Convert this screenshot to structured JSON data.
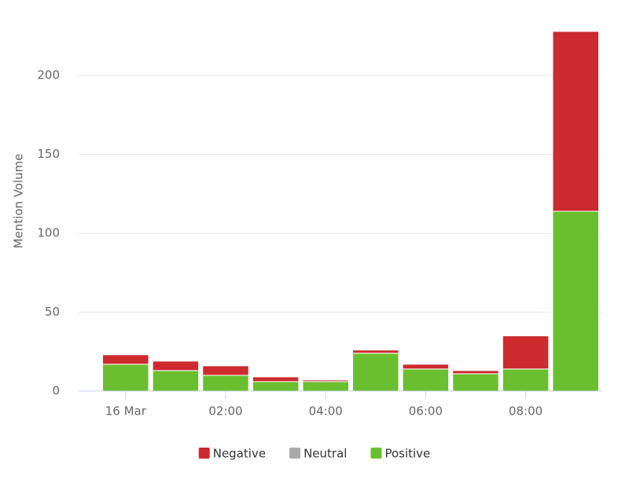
{
  "chart_data": {
    "type": "stacked-bar",
    "y_label": "Mention Volume",
    "categories": [
      "16 Mar",
      null,
      "02:00",
      null,
      "04:00",
      null,
      "06:00",
      null,
      "08:00",
      null
    ],
    "series": [
      {
        "name": "Positive",
        "color": "#6abf30",
        "values": [
          17,
          13,
          10,
          6,
          6,
          24,
          14,
          11,
          14,
          114
        ]
      },
      {
        "name": "Neutral",
        "color": "#aaaaaa",
        "values": [
          0,
          0,
          0,
          0,
          0,
          0,
          0,
          0,
          0,
          0
        ]
      },
      {
        "name": "Negative",
        "color": "#cc2a2e",
        "values": [
          6,
          6,
          6,
          3,
          1,
          2,
          3,
          2,
          21,
          114
        ]
      }
    ],
    "legend_order": [
      "Negative",
      "Neutral",
      "Positive"
    ],
    "ylim": [
      0,
      228
    ],
    "yticks": [
      0,
      50,
      100,
      150,
      200
    ],
    "grid": true
  }
}
